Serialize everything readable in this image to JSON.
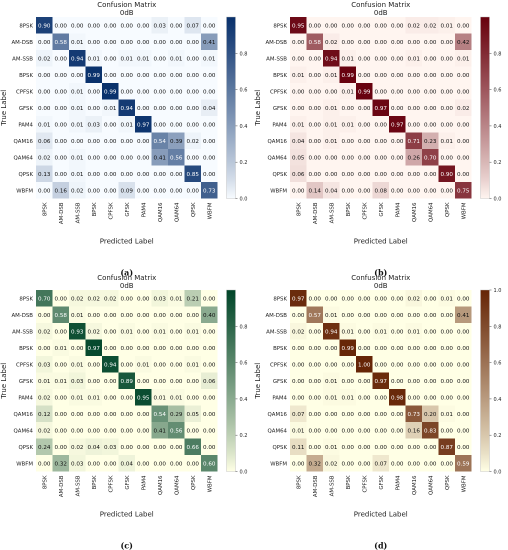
{
  "chart_data": [
    {
      "type": "heatmap",
      "panel_label": "(a)",
      "title": "Confusion Matrix",
      "subtitle": "0dB",
      "xlabel": "Predicted Label",
      "ylabel": "True Label",
      "colormap": "Blues",
      "color_low": "#f7fbff",
      "color_high": "#08306b",
      "colorbar_ticks": [
        "0.0",
        "0.2",
        "0.4",
        "0.6",
        "0.8"
      ],
      "categories": [
        "8PSK",
        "AM-DSB",
        "AM-SSB",
        "BPSK",
        "CPFSK",
        "GFSK",
        "PAM4",
        "QAM16",
        "QAM64",
        "QPSK",
        "WBFM"
      ],
      "values": [
        [
          0.9,
          0.0,
          0.0,
          0.0,
          0.0,
          0.0,
          0.0,
          0.03,
          0.0,
          0.07,
          0.0
        ],
        [
          0.0,
          0.58,
          0.01,
          0.0,
          0.0,
          0.0,
          0.0,
          0.0,
          0.0,
          0.0,
          0.41
        ],
        [
          0.02,
          0.0,
          0.94,
          0.01,
          0.0,
          0.01,
          0.01,
          0.0,
          0.01,
          0.0,
          0.01
        ],
        [
          0.0,
          0.0,
          0.0,
          0.99,
          0.0,
          0.0,
          0.0,
          0.0,
          0.0,
          0.0,
          0.0
        ],
        [
          0.0,
          0.0,
          0.01,
          0.0,
          0.99,
          0.0,
          0.0,
          0.0,
          0.0,
          0.0,
          0.0
        ],
        [
          0.0,
          0.0,
          0.01,
          0.0,
          0.01,
          0.94,
          0.0,
          0.0,
          0.0,
          0.0,
          0.04
        ],
        [
          0.01,
          0.0,
          0.01,
          0.03,
          0.0,
          0.01,
          0.97,
          0.0,
          0.0,
          0.0,
          0.0
        ],
        [
          0.06,
          0.0,
          0.0,
          0.0,
          0.0,
          0.0,
          0.0,
          0.54,
          0.39,
          0.02,
          0.0
        ],
        [
          0.02,
          0.0,
          0.01,
          0.0,
          0.0,
          0.0,
          0.0,
          0.41,
          0.56,
          0.0,
          0.0
        ],
        [
          0.13,
          0.0,
          0.01,
          0.0,
          0.0,
          0.0,
          0.0,
          0.0,
          0.0,
          0.85,
          0.0
        ],
        [
          0.0,
          0.16,
          0.02,
          0.0,
          0.0,
          0.09,
          0.0,
          0.0,
          0.0,
          0.0,
          0.73
        ]
      ]
    },
    {
      "type": "heatmap",
      "panel_label": "(b)",
      "title": "Confusion Matrix",
      "subtitle": "0dB",
      "xlabel": "Predicted Label",
      "ylabel": "True Label",
      "colormap": "Reds",
      "color_low": "#fff5f0",
      "color_high": "#67000d",
      "colorbar_ticks": [
        "0.0",
        "0.2",
        "0.4",
        "0.6",
        "0.8"
      ],
      "categories": [
        "8PSK",
        "AM-DSB",
        "AM-SSB",
        "BPSK",
        "CPFSK",
        "GFSK",
        "PAM4",
        "QAM16",
        "QAM64",
        "QPSK",
        "WBFM"
      ],
      "values": [
        [
          0.95,
          0.0,
          0.0,
          0.0,
          0.0,
          0.0,
          0.0,
          0.02,
          0.02,
          0.01,
          0.0
        ],
        [
          0.0,
          0.58,
          0.02,
          0.0,
          0.0,
          0.0,
          0.0,
          0.0,
          0.0,
          0.0,
          0.42
        ],
        [
          0.0,
          0.0,
          0.94,
          0.01,
          0.0,
          0.0,
          0.0,
          0.01,
          0.0,
          0.0,
          0.01
        ],
        [
          0.01,
          0.0,
          0.01,
          0.99,
          0.0,
          0.0,
          0.0,
          0.0,
          0.0,
          0.0,
          0.0
        ],
        [
          0.0,
          0.0,
          0.0,
          0.01,
          0.99,
          0.0,
          0.0,
          0.0,
          0.0,
          0.0,
          0.0
        ],
        [
          0.0,
          0.0,
          0.01,
          0.0,
          0.0,
          0.97,
          0.0,
          0.0,
          0.0,
          0.0,
          0.02
        ],
        [
          0.01,
          0.0,
          0.01,
          0.01,
          0.0,
          0.0,
          0.97,
          0.0,
          0.0,
          0.0,
          0.0
        ],
        [
          0.04,
          0.0,
          0.01,
          0.0,
          0.0,
          0.0,
          0.0,
          0.71,
          0.23,
          0.01,
          0.0
        ],
        [
          0.05,
          0.0,
          0.0,
          0.0,
          0.0,
          0.0,
          0.0,
          0.26,
          0.7,
          0.0,
          0.0
        ],
        [
          0.06,
          0.0,
          0.0,
          0.0,
          0.0,
          0.0,
          0.0,
          0.0,
          0.0,
          0.9,
          0.0
        ],
        [
          0.0,
          0.14,
          0.04,
          0.0,
          0.0,
          0.08,
          0.0,
          0.0,
          0.0,
          0.0,
          0.75
        ]
      ]
    },
    {
      "type": "heatmap",
      "panel_label": "(c)",
      "title": "Confusion Matrix",
      "subtitle": "0dB",
      "xlabel": "Predicted Label",
      "ylabel": "True Label",
      "colormap": "YlGn",
      "color_low": "#ffffe5",
      "color_high": "#004529",
      "colorbar_ticks": [
        "0.0",
        "0.2",
        "0.4",
        "0.6",
        "0.8"
      ],
      "categories": [
        "8PSK",
        "AM-DSB",
        "AM-SSB",
        "BPSK",
        "CPFSK",
        "GFSK",
        "PAM4",
        "QAM16",
        "QAM64",
        "QPSK",
        "WBFM"
      ],
      "values": [
        [
          0.7,
          0.0,
          0.02,
          0.02,
          0.02,
          0.0,
          0.0,
          0.03,
          0.01,
          0.21,
          0.0
        ],
        [
          0.0,
          0.58,
          0.01,
          0.0,
          0.0,
          0.0,
          0.0,
          0.0,
          0.0,
          0.0,
          0.4
        ],
        [
          0.02,
          0.0,
          0.93,
          0.02,
          0.0,
          0.01,
          0.0,
          0.01,
          0.0,
          0.01,
          0.0
        ],
        [
          0.0,
          0.01,
          0.0,
          0.97,
          0.0,
          0.0,
          0.0,
          0.0,
          0.0,
          0.0,
          0.0
        ],
        [
          0.03,
          0.0,
          0.01,
          0.0,
          0.94,
          0.0,
          0.01,
          0.0,
          0.0,
          0.01,
          0.0
        ],
        [
          0.01,
          0.01,
          0.03,
          0.0,
          0.0,
          0.89,
          0.0,
          0.0,
          0.0,
          0.0,
          0.06
        ],
        [
          0.02,
          0.0,
          0.01,
          0.01,
          0.0,
          0.0,
          0.95,
          0.01,
          0.01,
          0.0,
          0.0
        ],
        [
          0.12,
          0.0,
          0.0,
          0.0,
          0.0,
          0.0,
          0.0,
          0.54,
          0.29,
          0.05,
          0.0
        ],
        [
          0.02,
          0.0,
          0.0,
          0.0,
          0.0,
          0.0,
          0.0,
          0.41,
          0.56,
          0.0,
          0.0
        ],
        [
          0.24,
          0.0,
          0.02,
          0.04,
          0.03,
          0.0,
          0.0,
          0.0,
          0.0,
          0.66,
          0.0
        ],
        [
          0.0,
          0.32,
          0.03,
          0.0,
          0.0,
          0.04,
          0.0,
          0.0,
          0.0,
          0.0,
          0.6
        ]
      ]
    },
    {
      "type": "heatmap",
      "panel_label": "(d)",
      "title": "Confusion Matrix",
      "subtitle": "0dB",
      "xlabel": "Predicted Label",
      "ylabel": "True Label",
      "colormap": "YlOrBr",
      "color_low": "#ffffe5",
      "color_high": "#662506",
      "colorbar_ticks": [
        "0.0",
        "0.2",
        "0.4",
        "0.6",
        "0.8",
        "1.0"
      ],
      "categories": [
        "8PSK",
        "AM-DSB",
        "AM-SSB",
        "BPSK",
        "CPFSK",
        "GFSK",
        "PAM4",
        "QAM16",
        "QAM64",
        "QPSK",
        "WBFM"
      ],
      "values": [
        [
          0.97,
          0.0,
          0.0,
          0.0,
          0.0,
          0.0,
          0.0,
          0.02,
          0.0,
          0.01,
          0.0
        ],
        [
          0.0,
          0.57,
          0.01,
          0.0,
          0.0,
          0.0,
          0.0,
          0.0,
          0.0,
          0.0,
          0.41
        ],
        [
          0.02,
          0.0,
          0.94,
          0.01,
          0.0,
          0.01,
          0.0,
          0.01,
          0.0,
          0.0,
          0.0
        ],
        [
          0.0,
          0.0,
          0.0,
          0.99,
          0.0,
          0.0,
          0.0,
          0.0,
          0.0,
          0.0,
          0.0
        ],
        [
          0.0,
          0.0,
          0.0,
          0.0,
          1.0,
          0.0,
          0.0,
          0.0,
          0.0,
          0.0,
          0.0
        ],
        [
          0.0,
          0.0,
          0.01,
          0.0,
          0.0,
          0.97,
          0.0,
          0.0,
          0.0,
          0.0,
          0.0
        ],
        [
          0.0,
          0.0,
          0.01,
          0.01,
          0.0,
          0.0,
          0.98,
          0.0,
          0.0,
          0.0,
          0.0
        ],
        [
          0.07,
          0.0,
          0.0,
          0.0,
          0.0,
          0.0,
          0.0,
          0.73,
          0.2,
          0.01,
          0.0
        ],
        [
          0.01,
          0.0,
          0.0,
          0.0,
          0.0,
          0.0,
          0.0,
          0.16,
          0.83,
          0.0,
          0.0
        ],
        [
          0.11,
          0.0,
          0.01,
          0.0,
          0.0,
          0.0,
          0.0,
          0.0,
          0.0,
          0.87,
          0.0
        ],
        [
          0.0,
          0.32,
          0.02,
          0.0,
          0.0,
          0.07,
          0.0,
          0.0,
          0.0,
          0.0,
          0.59
        ]
      ]
    }
  ]
}
